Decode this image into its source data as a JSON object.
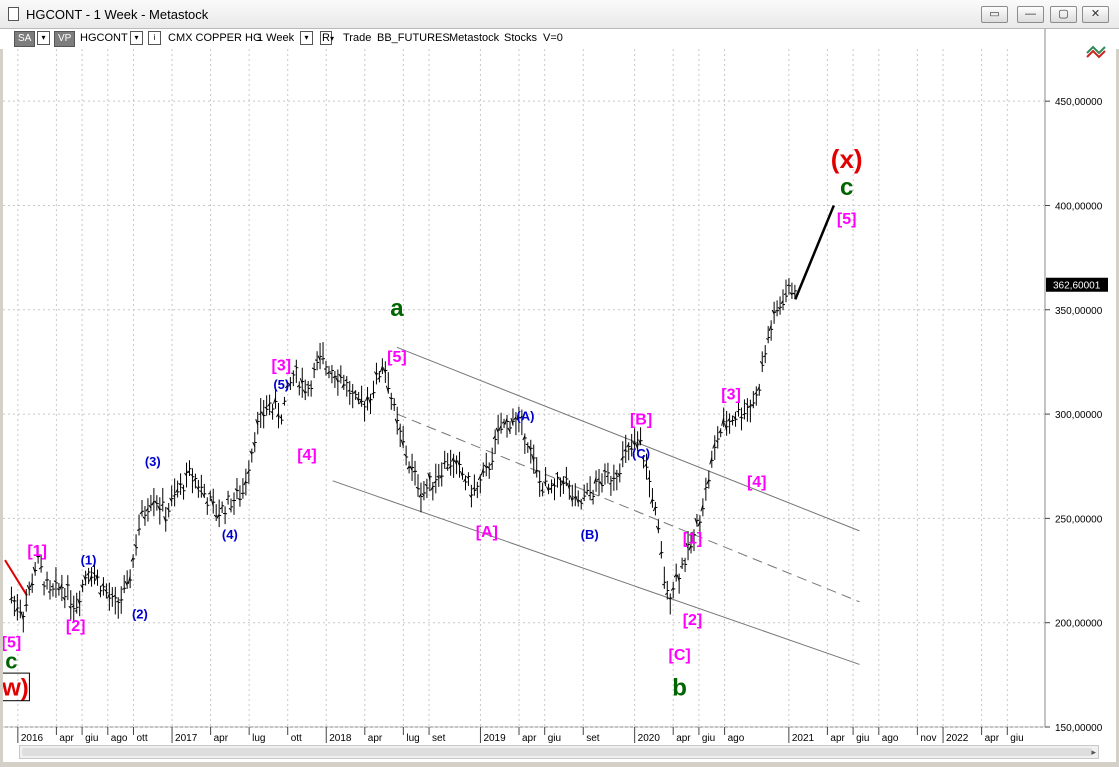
{
  "window": {
    "title": "HGCONT - 1 Week - Metastock",
    "buttons": [
      "▭",
      "—",
      "▢",
      "✕"
    ]
  },
  "toolbar": {
    "sa": "SA",
    "vp": "VP",
    "symbol": "HGCONT",
    "name": "CMX COPPER HG",
    "period": "1 Week",
    "r": "R",
    "trade": "Trade",
    "source": "BB_FUTURES",
    "vendor": "Metastock",
    "asset": "Stocks",
    "volume": "V=0"
  },
  "chart_data": {
    "type": "line",
    "price_axis": {
      "ylim": [
        150,
        475
      ],
      "ticks": [
        150,
        200,
        250,
        300,
        350,
        400,
        450
      ],
      "tick_labels": [
        "150,00000",
        "200,00000",
        "250,00000",
        "300,00000",
        "350,00000",
        "400,00000",
        "450,00000"
      ],
      "last_price": "362,60001"
    },
    "time_axis": {
      "labels": [
        "2016",
        "apr",
        "giu",
        "ago",
        "ott",
        "2017",
        "apr",
        "lug",
        "ott",
        "2018",
        "apr",
        "lug",
        "set",
        "2019",
        "apr",
        "giu",
        "set",
        "2020",
        "apr",
        "giu",
        "ago",
        "2021",
        "apr",
        "giu",
        "ago",
        "nov",
        "2022",
        "apr",
        "giu"
      ],
      "years": [
        "2016",
        "2017",
        "2018",
        "2019",
        "2020",
        "2021",
        "2022"
      ]
    },
    "series": [
      {
        "x": [
          "2015-12",
          "2016-01",
          "2016-02",
          "2016-03",
          "2016-04",
          "2016-05",
          "2016-06",
          "2016-07",
          "2016-08",
          "2016-09",
          "2016-10",
          "2016-11",
          "2016-12",
          "2017-01",
          "2017-02",
          "2017-03",
          "2017-04",
          "2017-05",
          "2017-06",
          "2017-07",
          "2017-08",
          "2017-09",
          "2017-10",
          "2017-11",
          "2017-12",
          "2018-01",
          "2018-02",
          "2018-03",
          "2018-04",
          "2018-05",
          "2018-06",
          "2018-07",
          "2018-08",
          "2018-09",
          "2018-10",
          "2018-11",
          "2018-12",
          "2019-01",
          "2019-02",
          "2019-03",
          "2019-04",
          "2019-05",
          "2019-06",
          "2019-07",
          "2019-08",
          "2019-09",
          "2019-10",
          "2019-11",
          "2019-12",
          "2020-01",
          "2020-02",
          "2020-03",
          "2020-04",
          "2020-05",
          "2020-06",
          "2020-07",
          "2020-08",
          "2020-09",
          "2020-10",
          "2020-11",
          "2020-12",
          "2021-01"
        ],
        "y": [
          212,
          205,
          230,
          213,
          218,
          208,
          227,
          218,
          208,
          215,
          248,
          262,
          252,
          263,
          272,
          262,
          252,
          258,
          262,
          292,
          305,
          300,
          320,
          312,
          325,
          322,
          315,
          303,
          310,
          325,
          295,
          275,
          262,
          270,
          278,
          272,
          262,
          272,
          292,
          298,
          292,
          268,
          262,
          270,
          255,
          262,
          268,
          272,
          282,
          285,
          258,
          212,
          225,
          238,
          262,
          290,
          298,
          302,
          308,
          340,
          355,
          362
        ]
      }
    ],
    "projection": {
      "from": [
        "2021-01",
        355
      ],
      "to": [
        "2021-04",
        400
      ]
    },
    "channels": [
      {
        "from": [
          "2018-06",
          332
        ],
        "to": [
          "2021-06",
          244
        ],
        "style": "solid"
      },
      {
        "from": [
          "2018-06",
          300
        ],
        "to": [
          "2021-06",
          210
        ],
        "style": "dashed"
      },
      {
        "from": [
          "2018-01",
          268
        ],
        "to": [
          "2021-06",
          180
        ],
        "style": "solid"
      }
    ],
    "wave_labels": [
      {
        "text": "(w)",
        "color": "#e00000",
        "pos": [
          "2015-12",
          165
        ],
        "size": 24,
        "boxed": true
      },
      {
        "text": "c",
        "color": "#006400",
        "pos": [
          "2015-12",
          178
        ],
        "size": 22
      },
      {
        "text": "[5]",
        "color": "#ff00ff",
        "pos": [
          "2015-12",
          188
        ],
        "size": 16
      },
      {
        "text": "[1]",
        "color": "#ff00ff",
        "pos": [
          "2016-02",
          232
        ],
        "size": 16
      },
      {
        "text": "[2]",
        "color": "#ff00ff",
        "pos": [
          "2016-05",
          196
        ],
        "size": 16
      },
      {
        "text": "(1)",
        "color": "#0000cc",
        "pos": [
          "2016-06",
          228
        ],
        "size": 13
      },
      {
        "text": "(2)",
        "color": "#0000cc",
        "pos": [
          "2016-10",
          202
        ],
        "size": 13
      },
      {
        "text": "(3)",
        "color": "#0000cc",
        "pos": [
          "2016-11",
          275
        ],
        "size": 13
      },
      {
        "text": "(4)",
        "color": "#0000cc",
        "pos": [
          "2017-05",
          240
        ],
        "size": 13
      },
      {
        "text": "(5)",
        "color": "#0000cc",
        "pos": [
          "2017-09",
          312
        ],
        "size": 13
      },
      {
        "text": "[3]",
        "color": "#ff00ff",
        "pos": [
          "2017-09",
          321
        ],
        "size": 16
      },
      {
        "text": "[4]",
        "color": "#ff00ff",
        "pos": [
          "2017-11",
          278
        ],
        "size": 16
      },
      {
        "text": "a",
        "color": "#006400",
        "pos": [
          "2018-06",
          347
        ],
        "size": 24
      },
      {
        "text": "[5]",
        "color": "#ff00ff",
        "pos": [
          "2018-06",
          325
        ],
        "size": 16
      },
      {
        "text": "[A]",
        "color": "#ff00ff",
        "pos": [
          "2019-01",
          241
        ],
        "size": 16
      },
      {
        "text": "(A)",
        "color": "#0000cc",
        "pos": [
          "2019-04",
          297
        ],
        "size": 13
      },
      {
        "text": "(B)",
        "color": "#0000cc",
        "pos": [
          "2019-09",
          240
        ],
        "size": 13
      },
      {
        "text": "[B]",
        "color": "#ff00ff",
        "pos": [
          "2020-01",
          295
        ],
        "size": 16
      },
      {
        "text": "(C)",
        "color": "#0000cc",
        "pos": [
          "2020-01",
          279
        ],
        "size": 13
      },
      {
        "text": "[1]",
        "color": "#ff00ff",
        "pos": [
          "2020-05",
          238
        ],
        "size": 16
      },
      {
        "text": "[2]",
        "color": "#ff00ff",
        "pos": [
          "2020-05",
          199
        ],
        "size": 16
      },
      {
        "text": "[C]",
        "color": "#ff00ff",
        "pos": [
          "2020-04",
          182
        ],
        "size": 16
      },
      {
        "text": "b",
        "color": "#006400",
        "pos": [
          "2020-04",
          165
        ],
        "size": 24
      },
      {
        "text": "[3]",
        "color": "#ff00ff",
        "pos": [
          "2020-08",
          307
        ],
        "size": 16
      },
      {
        "text": "[4]",
        "color": "#ff00ff",
        "pos": [
          "2020-10",
          265
        ],
        "size": 16
      },
      {
        "text": "(x)",
        "color": "#e00000",
        "pos": [
          "2021-05",
          418
        ],
        "size": 26
      },
      {
        "text": "c",
        "color": "#006400",
        "pos": [
          "2021-05",
          405
        ],
        "size": 24
      },
      {
        "text": "[5]",
        "color": "#ff00ff",
        "pos": [
          "2021-05",
          391
        ],
        "size": 16
      }
    ],
    "colors": {
      "bars": "#000000",
      "grid": "#c8c8c8",
      "projection": "#000000",
      "prior_trend": "#e00000"
    }
  }
}
